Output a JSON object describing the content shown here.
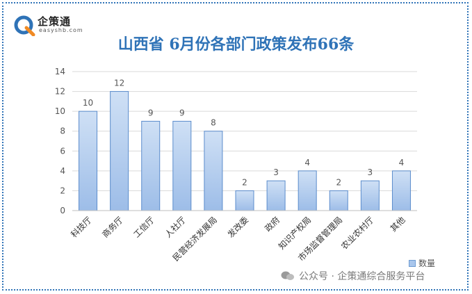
{
  "brand": {
    "name": "企策通",
    "domain": "easyshb.com"
  },
  "watermark": "公众号 · 企策通综合服务平台",
  "colors": {
    "border": "#2f73b7",
    "title": "#2f73b7",
    "bar_top": "#cfe0f5",
    "bar_bottom": "#9dbde8",
    "bar_stroke": "#5b8ccc"
  },
  "chart_data": {
    "type": "bar",
    "title": "山西省 6月份各部门政策发布66条",
    "categories": [
      "科技厅",
      "商务厅",
      "工信厅",
      "人社厅",
      "民营经济发展局",
      "发改委",
      "政府",
      "知识产权局",
      "市场监督管理局",
      "农业农村厅",
      "其他"
    ],
    "series": [
      {
        "name": "数量",
        "values": [
          10,
          12,
          9,
          9,
          8,
          2,
          3,
          4,
          2,
          3,
          4
        ]
      }
    ],
    "ylim": [
      0,
      14
    ],
    "yticks": [
      0,
      2,
      4,
      6,
      8,
      10,
      12,
      14
    ],
    "grid": true,
    "legend": "right"
  }
}
